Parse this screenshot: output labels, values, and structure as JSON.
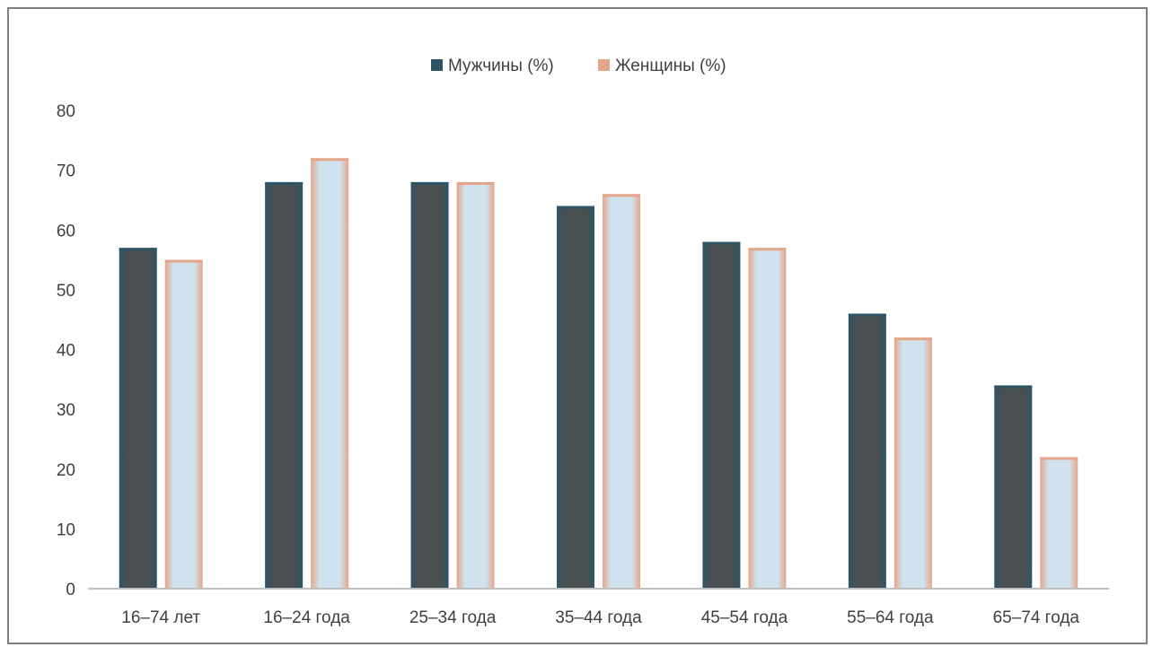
{
  "chart_data": {
    "type": "bar",
    "title": "",
    "xlabel": "",
    "ylabel": "",
    "categories": [
      "16–74 лет",
      "16–24 года",
      "25–34 года",
      "35–44 года",
      "45–54 года",
      "55–64 года",
      "65–74 года"
    ],
    "series": [
      {
        "name": "Мужчины (%)",
        "values": [
          57,
          68,
          68,
          64,
          58,
          46,
          34
        ]
      },
      {
        "name": "Женщины (%)",
        "values": [
          55,
          72,
          68,
          66,
          57,
          42,
          22
        ]
      }
    ],
    "ylim": [
      0,
      80
    ],
    "yticks": [
      "0",
      "10",
      "20",
      "30",
      "40",
      "50",
      "60",
      "70",
      "80"
    ],
    "grid": false,
    "legend": "top-center",
    "colors": {
      "series_0_edge": "#2e5566",
      "series_0_fill": "#4a4f51",
      "series_1_edge": "#e5a589",
      "series_1_fill": "#cfe2ee",
      "axis": "#bfbfbf",
      "text": "#404040"
    }
  }
}
